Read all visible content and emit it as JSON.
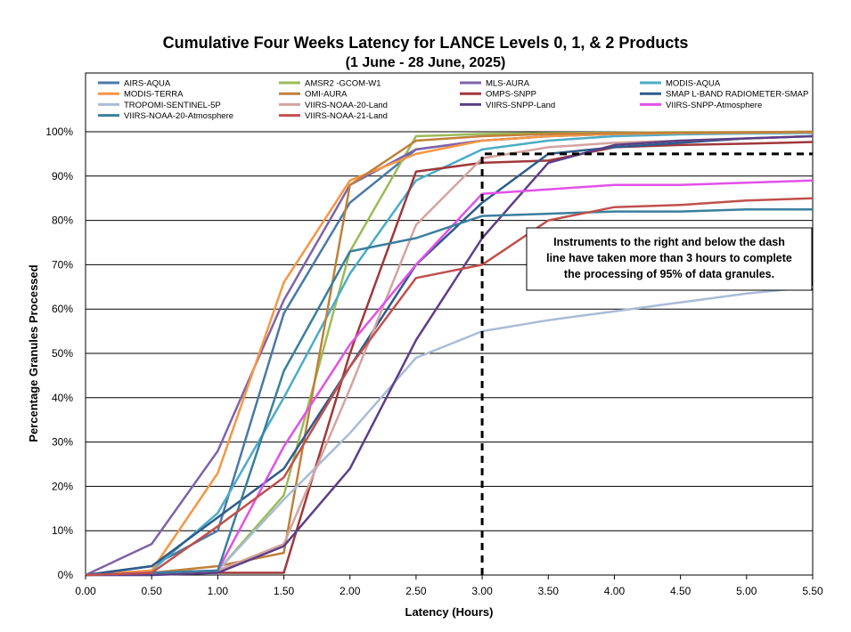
{
  "chart_data": {
    "type": "line",
    "title": "Cumulative Four Weeks Latency  for LANCE Levels 0, 1, & 2 Products",
    "subtitle": "(1  June   -  28  June,  2025)",
    "xlabel": "Latency (Hours)",
    "ylabel": "Percentage Granules Processed",
    "xlim": [
      0,
      5.5
    ],
    "ylim": [
      0,
      100
    ],
    "x_ticks": [
      "0.00",
      "0.50",
      "1.00",
      "1.50",
      "2.00",
      "2.50",
      "3.00",
      "3.50",
      "4.00",
      "4.50",
      "5.00",
      "5.50"
    ],
    "y_ticks": [
      "0%",
      "10%",
      "20%",
      "30%",
      "40%",
      "50%",
      "60%",
      "70%",
      "80%",
      "90%",
      "100%"
    ],
    "grid": "horizontal",
    "legend_position": "top",
    "x": [
      0,
      0.5,
      1.0,
      1.5,
      2.0,
      2.5,
      3.0,
      3.5,
      4.0,
      4.5,
      5.0,
      5.5
    ],
    "series": [
      {
        "name": "AIRS-AQUA",
        "color": "#4a78a8",
        "values": [
          0,
          2,
          10,
          59,
          84,
          96,
          98,
          99,
          99.5,
          99.7,
          99.8,
          99.9
        ]
      },
      {
        "name": "AMSR2 -GCOM-W1",
        "color": "#9bbb59",
        "values": [
          0,
          0.5,
          1,
          18,
          73,
          99,
          99.5,
          99.7,
          99.8,
          99.9,
          99.9,
          100
        ]
      },
      {
        "name": "MLS-AURA",
        "color": "#7f63a8",
        "values": [
          0,
          7,
          28,
          62,
          88,
          96,
          98,
          99,
          99.5,
          99.6,
          99.7,
          99.8
        ]
      },
      {
        "name": "MODIS-AQUA",
        "color": "#4bacc6",
        "values": [
          0,
          1,
          14,
          40,
          68,
          89,
          96,
          98,
          99,
          99.4,
          99.6,
          99.7
        ]
      },
      {
        "name": "MODIS-TERRA",
        "color": "#f79646",
        "values": [
          0,
          1,
          23,
          66,
          89,
          95,
          98,
          99,
          99.5,
          99.7,
          99.8,
          99.9
        ]
      },
      {
        "name": "OMI-AURA",
        "color": "#c0803a",
        "values": [
          0,
          0.5,
          2,
          5,
          88,
          98,
          99,
          99.5,
          99.7,
          99.8,
          99.9,
          100
        ]
      },
      {
        "name": "OMPS-SNPP",
        "color": "#a0383a",
        "values": [
          0,
          0.5,
          0.5,
          0.5,
          50,
          91,
          93,
          93.5,
          96.5,
          97,
          97.3,
          97.7
        ]
      },
      {
        "name": "SMAP L-BAND RADIOMETER-SMAP",
        "color": "#2e5b8a",
        "values": [
          0,
          2,
          13,
          24,
          47,
          70,
          84,
          95,
          96.5,
          97.5,
          98.5,
          99
        ]
      },
      {
        "name": "TROPOMI-SENTINEL-5P",
        "color": "#a9bcd6",
        "values": [
          0,
          0,
          1,
          17,
          32,
          49,
          55,
          57.5,
          59.5,
          61.5,
          63.5,
          65
        ]
      },
      {
        "name": "VIIRS-NOAA-20-Land",
        "color": "#d4a3a0",
        "values": [
          0,
          0.5,
          1,
          7,
          42,
          79,
          94,
          96.5,
          97.5,
          98,
          98.5,
          99
        ]
      },
      {
        "name": "VIIRS-SNPP-Land",
        "color": "#5c3f86",
        "values": [
          0,
          0,
          0.5,
          6.5,
          24,
          53,
          76,
          93,
          97,
          98,
          98.5,
          99
        ]
      },
      {
        "name": "VIIRS-SNPP-Atmosphere",
        "color": "#e251e8",
        "values": [
          0,
          0.5,
          1,
          29,
          52,
          70,
          86,
          87,
          88,
          88,
          88.5,
          89
        ]
      },
      {
        "name": "VIIRS-NOAA-20-Atmosphere",
        "color": "#3a7f9c",
        "values": [
          0,
          0.5,
          1,
          46,
          73,
          76,
          81,
          81.5,
          82,
          82,
          82.5,
          82.5
        ]
      },
      {
        "name": "VIIRS-NOAA-21-Land",
        "color": "#c0504d",
        "values": [
          0,
          0.5,
          11,
          22,
          47,
          67,
          70,
          80,
          83,
          83.5,
          84.5,
          85
        ]
      }
    ],
    "threshold": {
      "x": 3.0,
      "y": 95,
      "style": "dashed",
      "color": "#000000"
    },
    "annotation": "Instruments to the right and below the dash line have taken more than 3 hours to complete the processing of 95% of data granules."
  }
}
